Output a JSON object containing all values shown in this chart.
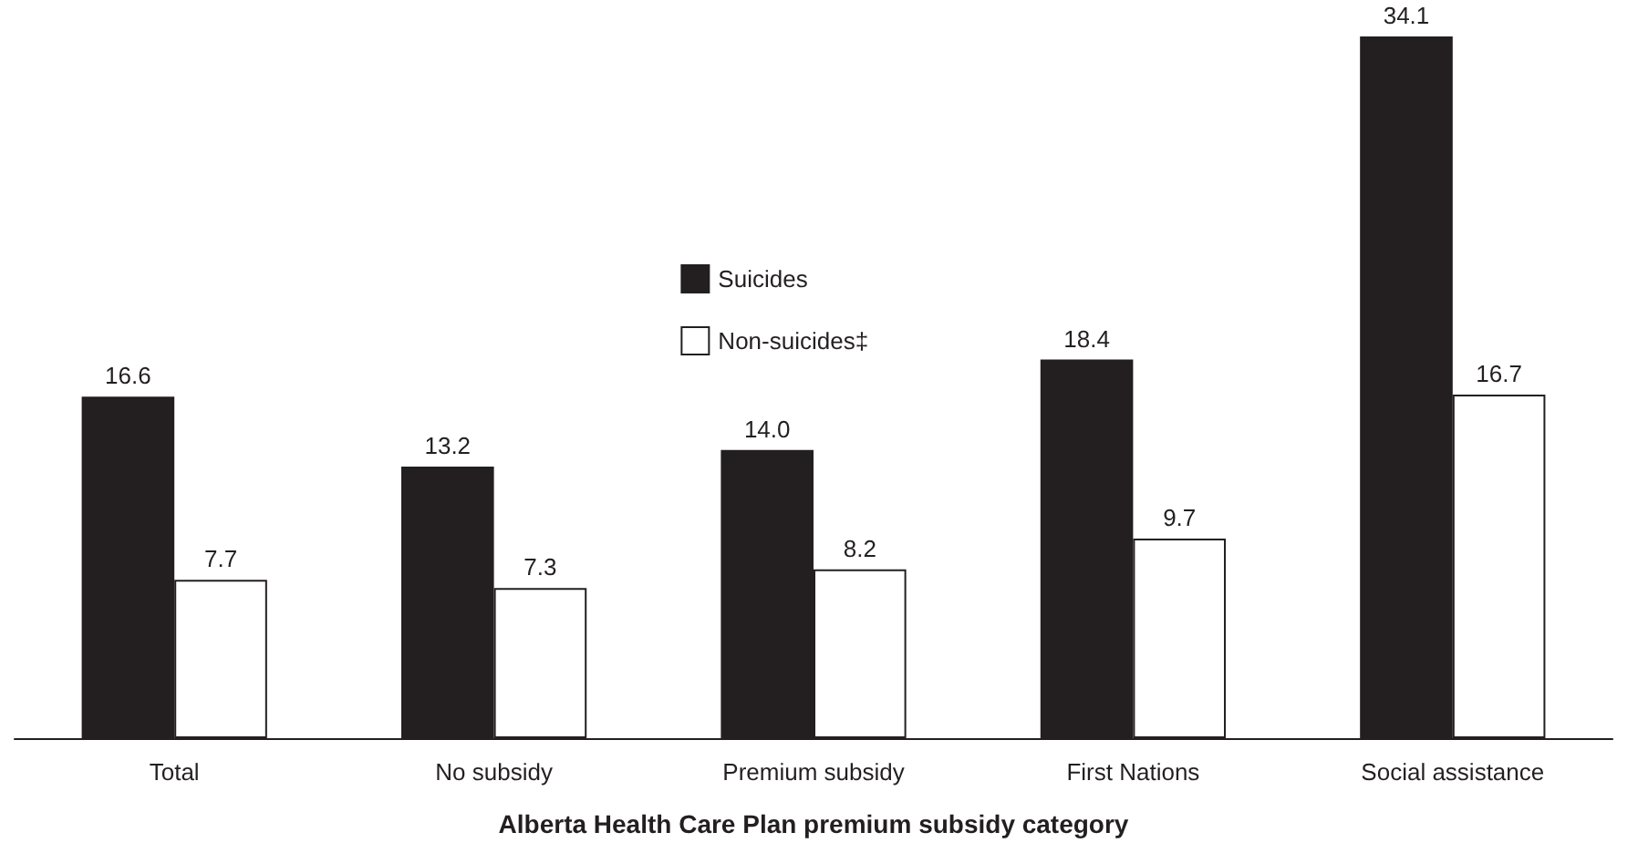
{
  "chart_data": {
    "type": "bar",
    "xlabel": "Alberta Health Care Plan premium subsidy category",
    "categories": [
      "Total",
      "No subsidy",
      "Premium subsidy",
      "First Nations",
      "Social assistance"
    ],
    "series": [
      {
        "name": "Suicides",
        "color": "#231f20",
        "values": [
          16.6,
          13.2,
          14.0,
          18.4,
          34.1
        ],
        "value_labels": [
          "16.6",
          "13.2",
          "14.0",
          "18.4",
          "34.1"
        ]
      },
      {
        "name": "Non-suicides‡",
        "color": "#ffffff",
        "values": [
          7.7,
          7.3,
          8.2,
          9.7,
          16.7
        ],
        "value_labels": [
          "7.7",
          "7.3",
          "8.2",
          "9.7",
          "16.7"
        ]
      }
    ],
    "legend": "top center"
  }
}
